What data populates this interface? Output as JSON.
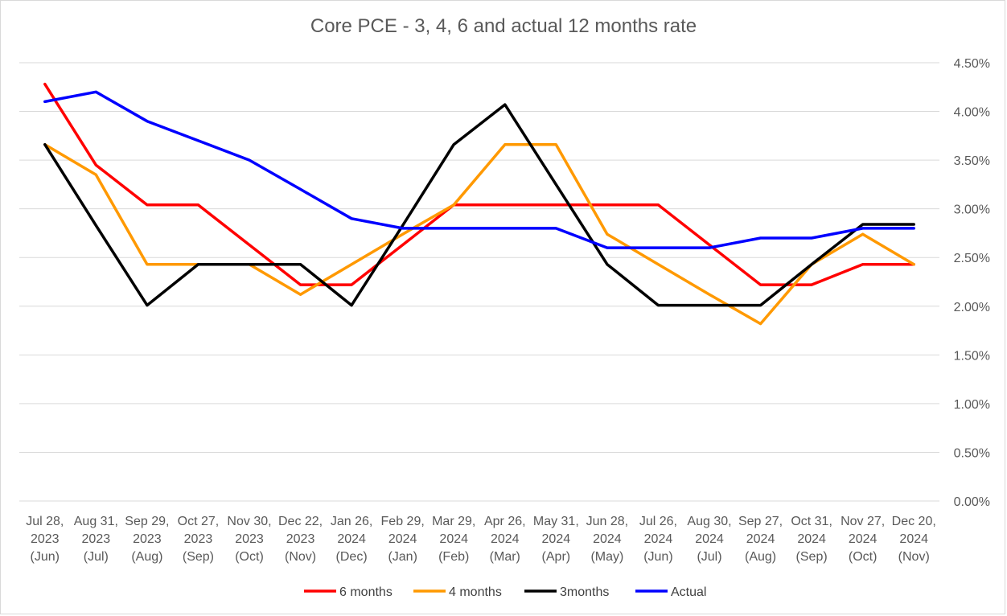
{
  "chart_data": {
    "type": "line",
    "title": "Core PCE - 3, 4, 6 and actual 12 months rate",
    "xlabel": "",
    "ylabel": "",
    "y_axis_position": "right",
    "ylim": [
      0,
      4.5
    ],
    "y_ticks": [
      0,
      0.5,
      1.0,
      1.5,
      2.0,
      2.5,
      3.0,
      3.5,
      4.0,
      4.5
    ],
    "y_tick_labels": [
      "0.00%",
      "0.50%",
      "1.00%",
      "1.50%",
      "2.00%",
      "2.50%",
      "3.00%",
      "3.50%",
      "4.00%",
      "4.50%"
    ],
    "grid": true,
    "legend_position": "bottom",
    "categories": [
      [
        "Jul 28,",
        "2023",
        "(Jun)"
      ],
      [
        "Aug 31,",
        "2023",
        "(Jul)"
      ],
      [
        "Sep 29,",
        "2023",
        "(Aug)"
      ],
      [
        "Oct 27,",
        "2023",
        "(Sep)"
      ],
      [
        "Nov 30,",
        "2023",
        "(Oct)"
      ],
      [
        "Dec 22,",
        "2023",
        "(Nov)"
      ],
      [
        "Jan 26,",
        "2024",
        "(Dec)"
      ],
      [
        "Feb 29,",
        "2024",
        "(Jan)"
      ],
      [
        "Mar 29,",
        "2024",
        "(Feb)"
      ],
      [
        "Apr 26,",
        "2024",
        "(Mar)"
      ],
      [
        "May 31,",
        "2024",
        "(Apr)"
      ],
      [
        "Jun 28,",
        "2024",
        "(May)"
      ],
      [
        "Jul 26,",
        "2024",
        "(Jun)"
      ],
      [
        "Aug 30,",
        "2024",
        "(Jul)"
      ],
      [
        "Sep 27,",
        "2024",
        "(Aug)"
      ],
      [
        "Oct 31,",
        "2024",
        "(Sep)"
      ],
      [
        "Nov 27,",
        "2024",
        "(Oct)"
      ],
      [
        "Dec 20,",
        "2024",
        "(Nov)"
      ]
    ],
    "series": [
      {
        "name": "6 months",
        "color": "#ff0000",
        "values": [
          4.28,
          3.45,
          3.04,
          3.04,
          2.63,
          2.22,
          2.22,
          2.63,
          3.04,
          3.04,
          3.04,
          3.04,
          3.04,
          2.63,
          2.22,
          2.22,
          2.43,
          2.43
        ]
      },
      {
        "name": "4 months",
        "color": "#ff9900",
        "values": [
          3.66,
          3.35,
          2.43,
          2.43,
          2.43,
          2.12,
          2.43,
          2.74,
          3.04,
          3.66,
          3.66,
          2.74,
          2.43,
          2.12,
          1.82,
          2.43,
          2.74,
          2.43
        ]
      },
      {
        "name": "3months",
        "color": "#000000",
        "values": [
          3.66,
          2.83,
          2.01,
          2.43,
          2.43,
          2.43,
          2.01,
          2.83,
          3.66,
          4.07,
          3.25,
          2.43,
          2.01,
          2.01,
          2.01,
          2.43,
          2.84,
          2.84
        ]
      },
      {
        "name": "Actual",
        "color": "#0000ff",
        "values": [
          4.1,
          4.2,
          3.9,
          3.7,
          3.5,
          3.2,
          2.9,
          2.8,
          2.8,
          2.8,
          2.8,
          2.6,
          2.6,
          2.6,
          2.7,
          2.7,
          2.8,
          2.8
        ]
      }
    ]
  }
}
